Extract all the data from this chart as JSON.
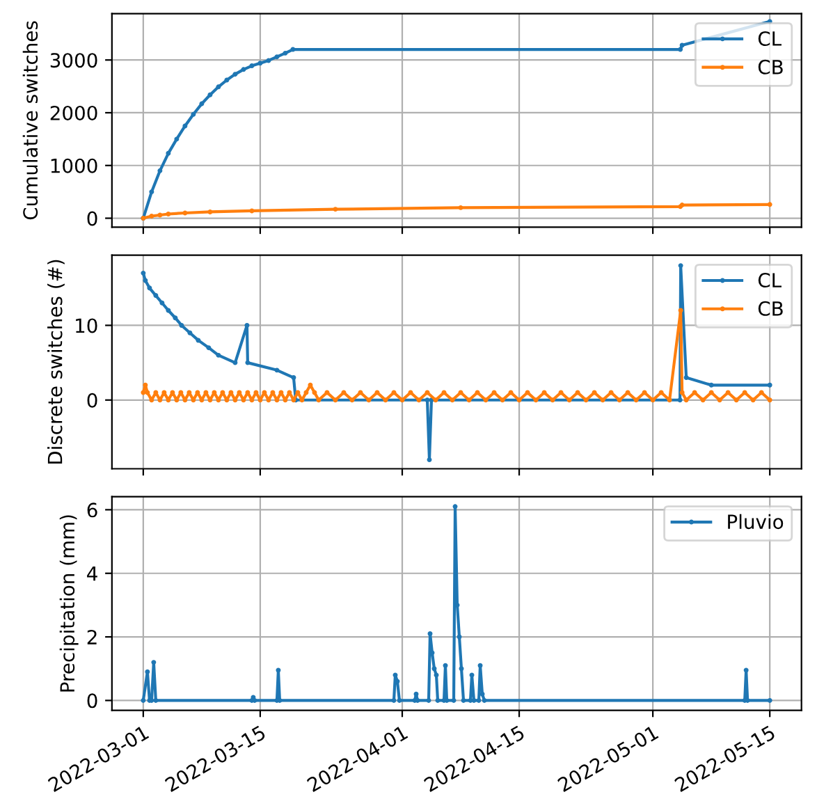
{
  "chart_data": [
    {
      "type": "line",
      "ylabel": "Cumulative switches",
      "xlim": [
        "2022-02-25T06:00",
        "2022-05-18T19:00"
      ],
      "ylim": [
        -170,
        3880
      ],
      "yticks": [
        0,
        1000,
        2000,
        3000
      ],
      "xticks": [
        "2022-03-01",
        "2022-03-15",
        "2022-04-01",
        "2022-04-15",
        "2022-05-01",
        "2022-05-15"
      ],
      "tick_labels": "y",
      "grid": true,
      "legend": "top right",
      "marker": "circle",
      "series": [
        {
          "name": "CL",
          "color": "#1f77b4",
          "x": [
            "2022-03-01",
            "2022-03-02",
            "2022-03-03",
            "2022-03-04",
            "2022-03-05",
            "2022-03-06",
            "2022-03-07",
            "2022-03-08",
            "2022-03-09",
            "2022-03-10",
            "2022-03-11",
            "2022-03-12",
            "2022-03-13",
            "2022-03-14",
            "2022-03-15",
            "2022-03-16",
            "2022-03-17",
            "2022-03-18",
            "2022-03-18T22:00",
            "2022-05-04T07:00",
            "2022-05-04T12:00",
            "2022-05-15"
          ],
          "values": [
            0,
            500,
            900,
            1230,
            1500,
            1750,
            1970,
            2170,
            2340,
            2490,
            2620,
            2730,
            2820,
            2890,
            2940,
            2990,
            3060,
            3130,
            3200,
            3200,
            3280,
            3730
          ]
        },
        {
          "name": "CB",
          "color": "#ff7f0e",
          "x": [
            "2022-03-01",
            "2022-03-02",
            "2022-03-03",
            "2022-03-04",
            "2022-03-06",
            "2022-03-09",
            "2022-03-14",
            "2022-03-24",
            "2022-04-08",
            "2022-05-04T07:00",
            "2022-05-04T12:00",
            "2022-05-15"
          ],
          "values": [
            0,
            40,
            60,
            80,
            100,
            120,
            140,
            170,
            200,
            220,
            250,
            260
          ]
        }
      ]
    },
    {
      "type": "line",
      "ylabel": "Discrete switches (#)",
      "xlim": [
        "2022-02-25T06:00",
        "2022-05-18T19:00"
      ],
      "ylim": [
        -9.2,
        19.4
      ],
      "yticks": [
        0,
        10
      ],
      "xticks": [
        "2022-03-01",
        "2022-03-15",
        "2022-04-01",
        "2022-04-15",
        "2022-05-01",
        "2022-05-15"
      ],
      "tick_labels": "y",
      "grid": true,
      "legend": "top right",
      "marker": "circle",
      "series": [
        {
          "name": "CL",
          "color": "#1f77b4",
          "x": [
            "2022-03-01T00:00",
            "2022-03-01T06:00",
            "2022-03-01T18:00",
            "2022-03-02T12:00",
            "2022-03-03T06:00",
            "2022-03-04T00:00",
            "2022-03-04T20:00",
            "2022-03-05T14:00",
            "2022-03-06T14:00",
            "2022-03-07T14:00",
            "2022-03-08T20:00",
            "2022-03-10T00:00",
            "2022-03-12T00:00",
            "2022-03-13T10:00",
            "2022-03-13T12:00",
            "2022-03-17T00:00",
            "2022-03-19T00:00",
            "2022-03-19T06:00",
            "2022-04-04T00:00",
            "2022-04-04T06:00",
            "2022-04-04T12:00",
            "2022-05-04T06:00",
            "2022-05-04T08:00",
            "2022-05-05T00:00",
            "2022-05-08T00:00",
            "2022-05-15T00:00"
          ],
          "values": [
            17,
            16,
            15,
            14,
            13,
            12,
            11,
            10,
            9,
            8,
            7,
            6,
            5,
            10,
            5,
            4,
            3,
            0,
            0,
            -8,
            0,
            0,
            18,
            3,
            2,
            2
          ]
        },
        {
          "name": "CB",
          "color": "#ff7f0e",
          "x": [
            "2022-03-01T00:00",
            "2022-03-01T06:00",
            "2022-03-01T12:00",
            "2022-03-02T00:00",
            "2022-03-02T12:00",
            "2022-03-03T00:00",
            "2022-03-03T12:00",
            "2022-03-04T00:00",
            "2022-03-04T12:00",
            "2022-03-05T00:00",
            "2022-03-05T12:00",
            "2022-03-06T00:00",
            "2022-03-06T12:00",
            "2022-03-07T00:00",
            "2022-03-07T12:00",
            "2022-03-08T00:00",
            "2022-03-08T12:00",
            "2022-03-09T00:00",
            "2022-03-09T12:00",
            "2022-03-10T00:00",
            "2022-03-10T12:00",
            "2022-03-11T00:00",
            "2022-03-11T12:00",
            "2022-03-12T00:00",
            "2022-03-12T12:00",
            "2022-03-13T00:00",
            "2022-03-13T12:00",
            "2022-03-14T00:00",
            "2022-03-14T12:00",
            "2022-03-15T00:00",
            "2022-03-15T12:00",
            "2022-03-16T00:00",
            "2022-03-16T12:00",
            "2022-03-17T00:00",
            "2022-03-17T12:00",
            "2022-03-18T00:00",
            "2022-03-18T12:00",
            "2022-03-19T00:00",
            "2022-03-19T12:00",
            "2022-03-20T00:00",
            "2022-03-20T12:00",
            "2022-03-21T00:00",
            "2022-03-21T12:00",
            "2022-03-22",
            "2022-03-23",
            "2022-03-24",
            "2022-03-25",
            "2022-03-26",
            "2022-03-27",
            "2022-03-28",
            "2022-03-29",
            "2022-03-30",
            "2022-03-31",
            "2022-04-01",
            "2022-04-02",
            "2022-04-03",
            "2022-04-04",
            "2022-04-05",
            "2022-04-06",
            "2022-04-07",
            "2022-04-08",
            "2022-04-09",
            "2022-04-10",
            "2022-04-11",
            "2022-04-12",
            "2022-04-13",
            "2022-04-14",
            "2022-04-15",
            "2022-04-16",
            "2022-04-17",
            "2022-04-18",
            "2022-04-19",
            "2022-04-20",
            "2022-04-21",
            "2022-04-22",
            "2022-04-23",
            "2022-04-24",
            "2022-04-25",
            "2022-04-26",
            "2022-04-27",
            "2022-04-28",
            "2022-04-29",
            "2022-04-30",
            "2022-05-01",
            "2022-05-02",
            "2022-05-03",
            "2022-05-04T08:00",
            "2022-05-04T12:00",
            "2022-05-05",
            "2022-05-06",
            "2022-05-07",
            "2022-05-08",
            "2022-05-09",
            "2022-05-10",
            "2022-05-11",
            "2022-05-12",
            "2022-05-13",
            "2022-05-14",
            "2022-05-15"
          ],
          "values": [
            1,
            2,
            1,
            0,
            1,
            0,
            1,
            0,
            1,
            0,
            1,
            0,
            1,
            0,
            1,
            0,
            1,
            0,
            1,
            0,
            1,
            0,
            1,
            0,
            1,
            0,
            1,
            0,
            1,
            0,
            1,
            0,
            1,
            0,
            1,
            0,
            1,
            0,
            1,
            0,
            1,
            2,
            1,
            0,
            1,
            0,
            1,
            0,
            1,
            0,
            1,
            0,
            1,
            0,
            1,
            0,
            1,
            0,
            1,
            0,
            1,
            0,
            1,
            0,
            1,
            0,
            1,
            0,
            1,
            0,
            1,
            0,
            1,
            0,
            1,
            0,
            1,
            0,
            1,
            0,
            1,
            0,
            1,
            0,
            1,
            0,
            12,
            1,
            0,
            1,
            0,
            1,
            0,
            1,
            0,
            1,
            0,
            1,
            0
          ]
        }
      ]
    },
    {
      "type": "line",
      "ylabel": "Precipitation (mm)",
      "xlim": [
        "2022-02-25T06:00",
        "2022-05-18T19:00"
      ],
      "ylim": [
        -0.31,
        6.41
      ],
      "yticks": [
        0,
        2,
        4,
        6
      ],
      "xticks": [
        "2022-03-01",
        "2022-03-15",
        "2022-04-01",
        "2022-04-15",
        "2022-05-01",
        "2022-05-15"
      ],
      "grid": true,
      "legend": "top right",
      "marker": "circle",
      "series": [
        {
          "name": "Pluvio",
          "color": "#1f77b4",
          "x": [
            "2022-03-01T00:00",
            "2022-03-01T12:00",
            "2022-03-01T18:00",
            "2022-03-02T00:00",
            "2022-03-02T06:00",
            "2022-03-02T12:00",
            "2022-03-14T00:00",
            "2022-03-14T04:00",
            "2022-03-14T08:00",
            "2022-03-17T00:00",
            "2022-03-17T04:00",
            "2022-03-17T08:00",
            "2022-03-31T00:00",
            "2022-03-31T04:00",
            "2022-03-31T10:00",
            "2022-03-31T16:00",
            "2022-04-02T12:00",
            "2022-04-02T16:00",
            "2022-04-02T20:00",
            "2022-04-04T04:00",
            "2022-04-04T08:00",
            "2022-04-04T14:00",
            "2022-04-04T20:00",
            "2022-04-05T02:00",
            "2022-04-05T06:00",
            "2022-04-06T00:00",
            "2022-04-06T04:00",
            "2022-04-06T08:00",
            "2022-04-07T04:00",
            "2022-04-07T08:00",
            "2022-04-07T14:00",
            "2022-04-07T20:00",
            "2022-04-08T02:00",
            "2022-04-08T08:00",
            "2022-04-09T04:00",
            "2022-04-09T08:00",
            "2022-04-09T14:00",
            "2022-04-10T04:00",
            "2022-04-10T08:00",
            "2022-04-10T14:00",
            "2022-04-10T20:00",
            "2022-05-12T00:00",
            "2022-05-12T04:00",
            "2022-05-12T08:00",
            "2022-05-15T00:00"
          ],
          "values": [
            0,
            0.9,
            0,
            0,
            1.2,
            0,
            0,
            0.1,
            0,
            0,
            0.95,
            0,
            0,
            0.8,
            0.6,
            0,
            0,
            0.2,
            0,
            0,
            2.1,
            1.5,
            1.0,
            0.8,
            0,
            0,
            1.1,
            0,
            0,
            6.1,
            3.0,
            2.0,
            1.0,
            0,
            0,
            0.8,
            0,
            0,
            1.1,
            0.2,
            0,
            0,
            0.95,
            0,
            0
          ]
        }
      ]
    }
  ]
}
